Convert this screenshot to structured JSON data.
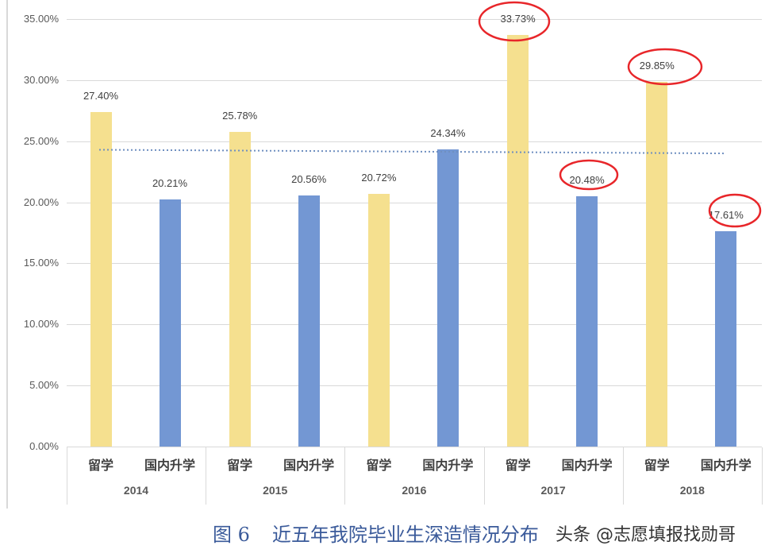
{
  "chart_data": {
    "type": "bar",
    "title": "图6 近五年我院毕业生深造情况分布",
    "xlabel": "",
    "ylabel": "",
    "ylim": [
      0,
      35
    ],
    "y_ticks": [
      "0.00%",
      "5.00%",
      "10.00%",
      "15.00%",
      "20.00%",
      "25.00%",
      "30.00%",
      "35.00%"
    ],
    "grid": true,
    "legend": null,
    "categories": [
      "2014",
      "2015",
      "2016",
      "2017",
      "2018"
    ],
    "sub_categories": [
      "留学",
      "国内升学"
    ],
    "series": [
      {
        "name": "留学",
        "color": "#f5e08f",
        "values": [
          27.4,
          25.78,
          20.72,
          33.73,
          29.85
        ],
        "labels": [
          "27.40%",
          "25.78%",
          "20.72%",
          "33.73%",
          "29.85%"
        ]
      },
      {
        "name": "国内升学",
        "color": "#7397d3",
        "values": [
          20.21,
          20.56,
          24.34,
          20.48,
          17.61
        ],
        "labels": [
          "20.21%",
          "20.56%",
          "24.34%",
          "20.48%",
          "17.61%"
        ]
      }
    ],
    "trendline": {
      "style": "dotted",
      "color": "#6f8fc0",
      "start_value": 24.3,
      "end_value": 24.0
    },
    "annotations": [
      "red hand-drawn circles around 33.73%, 29.85%, 20.48%, 17.61%"
    ]
  },
  "caption": {
    "figure_number": "图 6",
    "text": "近五年我院毕业生深造情况分布"
  },
  "watermark": "头条 @志愿填报找勋哥"
}
